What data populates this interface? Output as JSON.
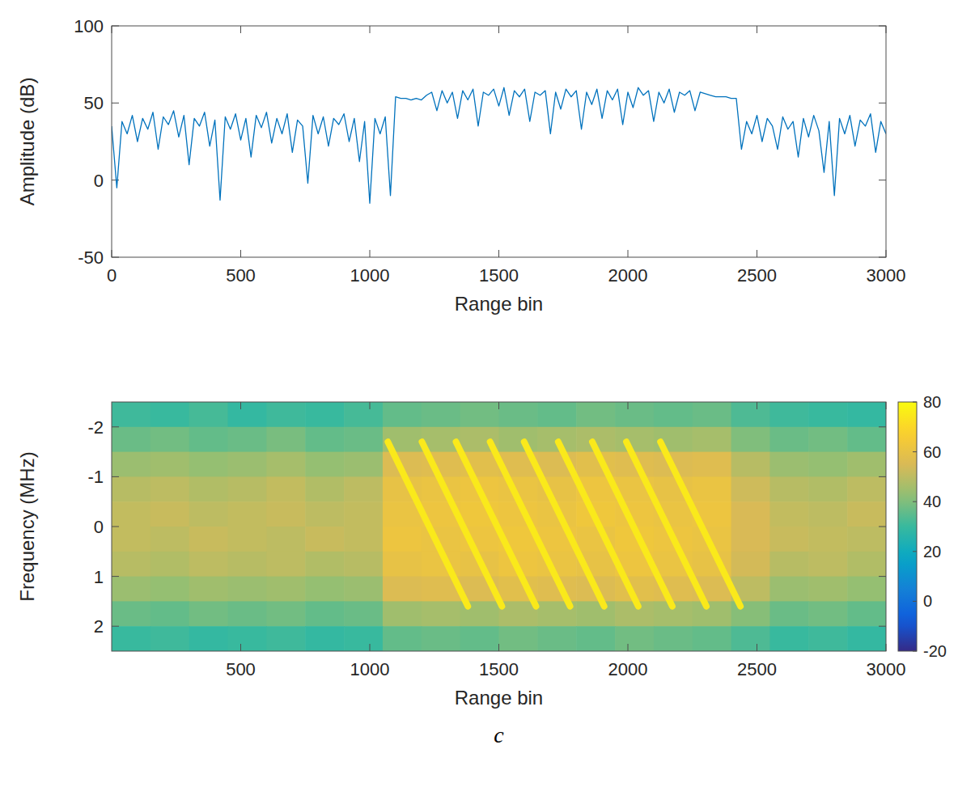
{
  "chart_data": [
    {
      "type": "line",
      "x_label": "Range bin",
      "y_label": "Amplitude (dB)",
      "xlim": [
        0,
        3000
      ],
      "ylim": [
        -50,
        100
      ],
      "xticks": [
        0,
        500,
        1000,
        1500,
        2000,
        2500,
        3000
      ],
      "yticks": [
        -50,
        0,
        50,
        100
      ],
      "grid": false,
      "color": "#0072bd",
      "x": [
        0,
        20,
        40,
        60,
        80,
        100,
        120,
        140,
        160,
        180,
        200,
        220,
        240,
        260,
        280,
        300,
        320,
        340,
        360,
        380,
        400,
        420,
        440,
        460,
        480,
        500,
        520,
        540,
        560,
        580,
        600,
        620,
        640,
        660,
        680,
        700,
        720,
        740,
        760,
        780,
        800,
        820,
        840,
        860,
        880,
        900,
        920,
        940,
        960,
        980,
        1000,
        1020,
        1040,
        1060,
        1080,
        1100,
        1120,
        1140,
        1160,
        1180,
        1200,
        1220,
        1240,
        1260,
        1280,
        1300,
        1320,
        1340,
        1360,
        1380,
        1400,
        1420,
        1440,
        1460,
        1480,
        1500,
        1520,
        1540,
        1560,
        1580,
        1600,
        1620,
        1640,
        1660,
        1680,
        1700,
        1720,
        1740,
        1760,
        1780,
        1800,
        1820,
        1840,
        1860,
        1880,
        1900,
        1920,
        1940,
        1960,
        1980,
        2000,
        2020,
        2040,
        2060,
        2080,
        2100,
        2120,
        2140,
        2160,
        2180,
        2200,
        2220,
        2240,
        2260,
        2280,
        2300,
        2320,
        2340,
        2360,
        2380,
        2400,
        2420,
        2440,
        2460,
        2480,
        2500,
        2520,
        2540,
        2560,
        2580,
        2600,
        2620,
        2640,
        2660,
        2680,
        2700,
        2720,
        2740,
        2760,
        2780,
        2800,
        2820,
        2840,
        2860,
        2880,
        2900,
        2920,
        2940,
        2960,
        2980,
        3000
      ],
      "values": [
        35,
        -5,
        38,
        30,
        42,
        25,
        40,
        33,
        44,
        20,
        41,
        36,
        45,
        28,
        42,
        10,
        40,
        35,
        44,
        22,
        39,
        -13,
        41,
        33,
        43,
        26,
        40,
        15,
        42,
        34,
        44,
        24,
        40,
        30,
        43,
        18,
        39,
        35,
        -2,
        42,
        30,
        41,
        22,
        40,
        36,
        43,
        25,
        40,
        12,
        38,
        -15,
        40,
        30,
        41,
        -10,
        54,
        53,
        53,
        52,
        53,
        52,
        55,
        57,
        45,
        58,
        50,
        57,
        40,
        58,
        52,
        59,
        35,
        57,
        55,
        59,
        48,
        60,
        42,
        58,
        54,
        59,
        38,
        57,
        55,
        58,
        30,
        57,
        46,
        59,
        54,
        58,
        33,
        57,
        49,
        59,
        40,
        58,
        52,
        59,
        36,
        57,
        47,
        60,
        55,
        58,
        38,
        57,
        50,
        59,
        44,
        57,
        55,
        58,
        45,
        57,
        56,
        55,
        54,
        54,
        54,
        53,
        53,
        20,
        38,
        30,
        42,
        25,
        40,
        35,
        20,
        41,
        33,
        38,
        15,
        40,
        28,
        42,
        32,
        5,
        38,
        -10,
        40,
        30,
        42,
        22,
        39,
        35,
        43,
        18,
        38,
        30
      ]
    },
    {
      "type": "heatmap",
      "x_label": "Range bin",
      "y_label": "Frequency (MHz)",
      "xlim": [
        0,
        3000
      ],
      "ylim": [
        2.5,
        -2.5
      ],
      "xticks": [
        500,
        1000,
        1500,
        2000,
        2500,
        3000
      ],
      "yticks": [
        -2,
        -1,
        0,
        1,
        2
      ],
      "x_edges": [
        0,
        150,
        300,
        450,
        600,
        750,
        900,
        1050,
        1200,
        1350,
        1500,
        1650,
        1800,
        1950,
        2100,
        2250,
        2400,
        2550,
        2700,
        2850,
        3000
      ],
      "y_edges": [
        -2.5,
        -2,
        -1.5,
        -1,
        -0.5,
        0,
        0.5,
        1,
        1.5,
        2,
        2.5
      ],
      "cells": [
        [
          31,
          30,
          32,
          29,
          31,
          30,
          32,
          36,
          37,
          38,
          37,
          36,
          38,
          37,
          36,
          37,
          33,
          31,
          30,
          29
        ],
        [
          37,
          38,
          36,
          37,
          39,
          36,
          37,
          45,
          46,
          47,
          45,
          46,
          47,
          46,
          45,
          46,
          40,
          37,
          38,
          36
        ],
        [
          44,
          45,
          43,
          44,
          46,
          43,
          44,
          56,
          57,
          58,
          57,
          56,
          58,
          57,
          56,
          57,
          49,
          44,
          43,
          45
        ],
        [
          49,
          50,
          48,
          49,
          51,
          48,
          50,
          60,
          61,
          62,
          61,
          60,
          62,
          61,
          60,
          61,
          53,
          49,
          48,
          50
        ],
        [
          51,
          52,
          50,
          51,
          52,
          50,
          51,
          61,
          62,
          63,
          62,
          61,
          63,
          62,
          61,
          62,
          55,
          51,
          50,
          52
        ],
        [
          51,
          50,
          52,
          51,
          50,
          52,
          51,
          62,
          61,
          62,
          63,
          62,
          61,
          63,
          62,
          61,
          55,
          52,
          51,
          50
        ],
        [
          49,
          48,
          50,
          49,
          50,
          48,
          49,
          60,
          61,
          60,
          62,
          61,
          60,
          62,
          61,
          60,
          54,
          49,
          50,
          48
        ],
        [
          44,
          43,
          45,
          44,
          45,
          43,
          44,
          56,
          57,
          56,
          58,
          57,
          56,
          58,
          57,
          56,
          50,
          44,
          45,
          43
        ],
        [
          37,
          36,
          38,
          37,
          38,
          36,
          37,
          45,
          46,
          45,
          47,
          46,
          45,
          47,
          46,
          45,
          41,
          37,
          38,
          36
        ],
        [
          30,
          31,
          29,
          30,
          31,
          29,
          30,
          36,
          37,
          36,
          38,
          37,
          36,
          38,
          37,
          36,
          33,
          30,
          31,
          29
        ]
      ],
      "chirps": [
        {
          "x": [
            1070,
            1380
          ],
          "y": [
            -1.7,
            1.6
          ],
          "value": 75
        },
        {
          "x": [
            1202,
            1512
          ],
          "y": [
            -1.7,
            1.6
          ],
          "value": 75
        },
        {
          "x": [
            1334,
            1644
          ],
          "y": [
            -1.7,
            1.6
          ],
          "value": 75
        },
        {
          "x": [
            1466,
            1776
          ],
          "y": [
            -1.7,
            1.6
          ],
          "value": 75
        },
        {
          "x": [
            1598,
            1908
          ],
          "y": [
            -1.7,
            1.6
          ],
          "value": 75
        },
        {
          "x": [
            1730,
            2040
          ],
          "y": [
            -1.7,
            1.6
          ],
          "value": 75
        },
        {
          "x": [
            1862,
            2172
          ],
          "y": [
            -1.7,
            1.6
          ],
          "value": 75
        },
        {
          "x": [
            1994,
            2304
          ],
          "y": [
            -1.7,
            1.6
          ],
          "value": 75
        },
        {
          "x": [
            2126,
            2436
          ],
          "y": [
            -1.7,
            1.6
          ],
          "value": 75
        }
      ],
      "colorbar": {
        "range": [
          -20,
          80
        ],
        "ticks": [
          -20,
          0,
          20,
          40,
          60,
          80
        ]
      }
    }
  ],
  "panel_label": "c"
}
